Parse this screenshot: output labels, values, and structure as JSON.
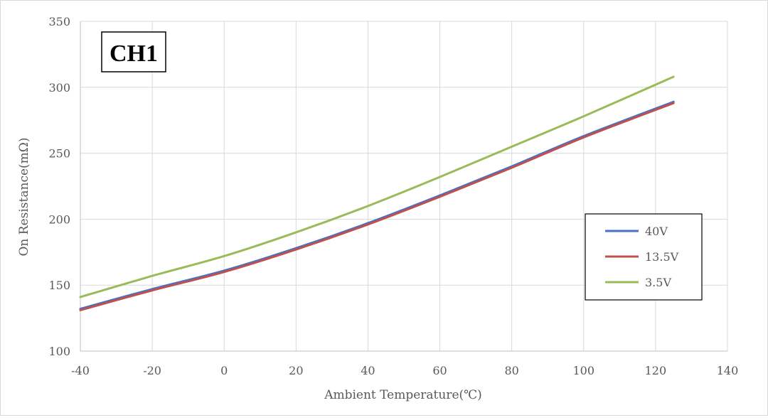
{
  "chart_data": {
    "type": "line",
    "title": "CH1",
    "xlabel": "Ambient Temperature(℃)",
    "ylabel": "On Resistance(mΩ)",
    "xlim": [
      -40,
      140
    ],
    "ylim": [
      100,
      350
    ],
    "x_ticks": [
      "-40",
      "-20",
      "0",
      "20",
      "40",
      "60",
      "80",
      "100",
      "120",
      "140"
    ],
    "y_ticks": [
      "100",
      "150",
      "200",
      "250",
      "300",
      "350"
    ],
    "grid": true,
    "legend_position": "right",
    "series": [
      {
        "name": "40V",
        "color": "#4472C4",
        "points": [
          [
            -40,
            132
          ],
          [
            -20,
            147
          ],
          [
            0,
            161
          ],
          [
            20,
            178
          ],
          [
            40,
            197
          ],
          [
            60,
            218
          ],
          [
            80,
            240
          ],
          [
            100,
            263
          ],
          [
            125,
            289
          ]
        ]
      },
      {
        "name": "13.5V",
        "color": "#C0504D",
        "points": [
          [
            -40,
            131
          ],
          [
            -20,
            146
          ],
          [
            0,
            160
          ],
          [
            20,
            177
          ],
          [
            40,
            196
          ],
          [
            60,
            217
          ],
          [
            80,
            239
          ],
          [
            100,
            262
          ],
          [
            125,
            288
          ]
        ]
      },
      {
        "name": "3.5V",
        "color": "#9BBB59",
        "points": [
          [
            -40,
            141
          ],
          [
            -20,
            157
          ],
          [
            0,
            172
          ],
          [
            20,
            190
          ],
          [
            40,
            210
          ],
          [
            60,
            232
          ],
          [
            80,
            255
          ],
          [
            100,
            278
          ],
          [
            125,
            308
          ]
        ]
      }
    ]
  }
}
